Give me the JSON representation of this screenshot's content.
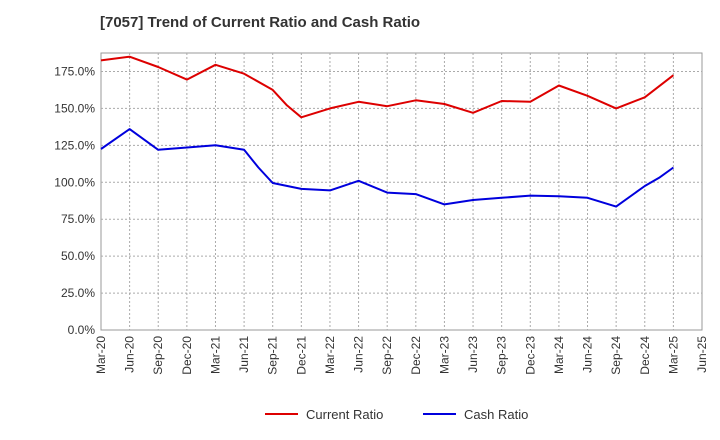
{
  "chart_data": {
    "type": "line",
    "title": "[7057]  Trend of Current Ratio and Cash Ratio",
    "xlabel": "",
    "ylabel": "",
    "ylim": [
      0,
      187.5
    ],
    "y_ticks": [
      0,
      25,
      50,
      75,
      100,
      125,
      150,
      175
    ],
    "y_tick_labels": [
      "0.0%",
      "25.0%",
      "50.0%",
      "75.0%",
      "100.0%",
      "125.0%",
      "150.0%",
      "175.0%"
    ],
    "x_ticks": [
      "Mar-20",
      "Jun-20",
      "Sep-20",
      "Dec-20",
      "Mar-21",
      "Jun-21",
      "Sep-21",
      "Dec-21",
      "Mar-22",
      "Jun-22",
      "Sep-22",
      "Dec-22",
      "Mar-23",
      "Jun-23",
      "Sep-23",
      "Dec-23",
      "Mar-24",
      "Jun-24",
      "Sep-24",
      "Dec-24",
      "Mar-25",
      "Jun-25"
    ],
    "grid": true,
    "legend_position": "bottom",
    "series": [
      {
        "name": "Current Ratio",
        "color": "#dd0000",
        "x": [
          0,
          1,
          2,
          3,
          4,
          5,
          6,
          6.5,
          7,
          8,
          9,
          10,
          11,
          12,
          13,
          14,
          15,
          16,
          17,
          18,
          19,
          20
        ],
        "values": [
          182.5,
          185,
          178,
          169.5,
          179.5,
          173.5,
          162.5,
          152,
          144,
          150,
          154.5,
          151.5,
          155.5,
          153,
          147,
          155,
          154.5,
          165.5,
          158.5,
          150,
          157.5,
          172.5
        ]
      },
      {
        "name": "Cash Ratio",
        "color": "#0000dd",
        "x": [
          0,
          1,
          2,
          3,
          4,
          5,
          5.5,
          6,
          7,
          8,
          9,
          10,
          11,
          12,
          13,
          14,
          15,
          16,
          17,
          18,
          19,
          19.5,
          20
        ],
        "values": [
          122.5,
          136,
          122,
          123.5,
          125,
          122,
          110,
          99.5,
          95.5,
          94.5,
          101,
          93,
          92,
          85,
          88,
          89.5,
          91,
          90.5,
          89.5,
          83.5,
          97.5,
          103,
          110
        ]
      }
    ]
  }
}
